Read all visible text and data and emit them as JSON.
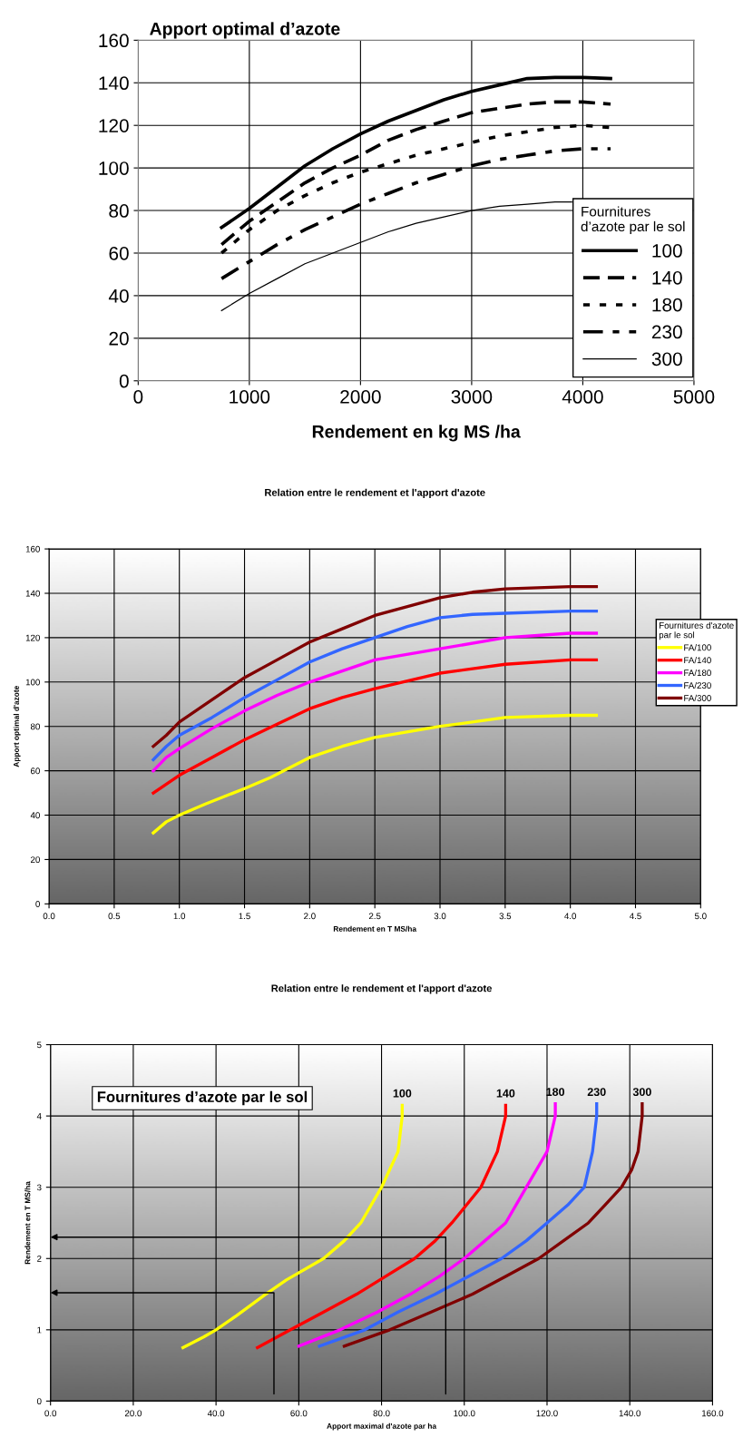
{
  "chart_data": [
    {
      "type": "line",
      "title": "Apport optimal d’azote",
      "xlabel": "Rendement en kg MS /ha",
      "legend_title": "Fournitures\nd’azote par le sol",
      "legend": "bottom right",
      "grid": true,
      "xlim": [
        0,
        5000
      ],
      "xticks": [
        0,
        1000,
        2000,
        3000,
        4000,
        5000
      ],
      "ylim": [
        0,
        160
      ],
      "yticks": [
        0,
        20,
        40,
        60,
        80,
        100,
        120,
        140,
        160
      ],
      "series": [
        {
          "name": "100",
          "color": "#000000",
          "line_style": "solid",
          "x": [
            750,
            1000,
            1250,
            1500,
            1750,
            2000,
            2250,
            2500,
            2750,
            3000,
            3250,
            3500,
            3750,
            4000,
            4250
          ],
          "values": [
            72,
            81,
            91,
            101,
            109,
            116,
            122,
            127,
            132,
            136,
            139,
            142,
            142.5,
            142.5,
            142
          ]
        },
        {
          "name": "140",
          "color": "#000000",
          "line_style": "dashed",
          "x": [
            750,
            1000,
            1250,
            1500,
            1750,
            2000,
            2250,
            2500,
            2750,
            3000,
            3250,
            3500,
            3750,
            4000,
            4250
          ],
          "values": [
            64,
            75,
            84,
            93,
            100,
            106,
            113,
            118,
            122,
            126,
            128,
            130,
            131,
            131,
            130
          ]
        },
        {
          "name": "180",
          "color": "#000000",
          "line_style": "dotted",
          "x": [
            750,
            1000,
            1250,
            1500,
            1750,
            2000,
            2250,
            2500,
            2750,
            3000,
            3250,
            3500,
            3750,
            4000,
            4250
          ],
          "values": [
            60,
            71,
            80,
            87,
            93,
            98,
            102,
            106,
            109,
            112,
            115,
            117,
            119,
            120,
            119
          ]
        },
        {
          "name": "230",
          "color": "#000000",
          "line_style": "dashdot",
          "x": [
            750,
            1000,
            1250,
            1500,
            1750,
            2000,
            2250,
            2500,
            2750,
            3000,
            3250,
            3500,
            3750,
            4000,
            4250
          ],
          "values": [
            48,
            56,
            64,
            71,
            77,
            83,
            88,
            93,
            97,
            101,
            104,
            106,
            108,
            109,
            109
          ]
        },
        {
          "name": "300",
          "color": "#000000",
          "line_style": "solid",
          "x": [
            750,
            1000,
            1250,
            1500,
            1750,
            2000,
            2250,
            2500,
            2750,
            3000,
            3250,
            3500,
            3750,
            3900
          ],
          "values": [
            33,
            41,
            48,
            55,
            60,
            65,
            70,
            74,
            77,
            80,
            82,
            83,
            84,
            84
          ]
        }
      ]
    },
    {
      "type": "line",
      "title": "Relation entre le rendement et l'apport d'azote",
      "xlabel": "Rendement en T MS/ha",
      "ylabel": "Apport optimal d'azote",
      "legend_title": "Fournitures d'azote\npar le sol",
      "legend": "right",
      "grid": true,
      "xlim": [
        0,
        5
      ],
      "xticks": [
        {
          "value": 0,
          "label": "0.0"
        },
        {
          "value": 0.5,
          "label": "0.5"
        },
        {
          "value": 1,
          "label": "1.0"
        },
        {
          "value": 1.5,
          "label": "1.5"
        },
        {
          "value": 2,
          "label": "2.0"
        },
        {
          "value": 2.5,
          "label": "2.5"
        },
        {
          "value": 3,
          "label": "3.0"
        },
        {
          "value": 3.5,
          "label": "3.5"
        },
        {
          "value": 4,
          "label": "4.0"
        },
        {
          "value": 4.5,
          "label": "4.5"
        },
        {
          "value": 5,
          "label": "5.0"
        }
      ],
      "ylim": [
        0,
        160
      ],
      "yticks": [
        0,
        20,
        40,
        60,
        80,
        100,
        120,
        140,
        160
      ],
      "series": [
        {
          "name": "FA/100",
          "color": "#ffff00",
          "x": [
            0.8,
            0.9,
            1.0,
            1.2,
            1.5,
            1.7,
            2.0,
            2.25,
            2.5,
            3.0,
            3.5,
            4.0,
            4.2
          ],
          "values": [
            32,
            37,
            40,
            45,
            52,
            57,
            66,
            71,
            75,
            80,
            84,
            85,
            85
          ]
        },
        {
          "name": "FA/140",
          "color": "#ff0000",
          "x": [
            0.8,
            1.0,
            1.25,
            1.5,
            1.75,
            2.0,
            2.25,
            2.5,
            3.0,
            3.5,
            4.0,
            4.2
          ],
          "values": [
            50,
            58,
            66,
            74,
            81,
            88,
            93,
            97,
            104,
            108,
            110,
            110
          ]
        },
        {
          "name": "FA/180",
          "color": "#ff00ff",
          "x": [
            0.8,
            0.9,
            1.0,
            1.25,
            1.5,
            1.75,
            2.0,
            2.25,
            2.5,
            3.0,
            3.5,
            4.0,
            4.2
          ],
          "values": [
            60,
            66,
            70,
            79,
            87,
            94,
            100,
            105,
            110,
            115,
            120,
            122,
            122
          ]
        },
        {
          "name": "FA/230",
          "color": "#3366ff",
          "x": [
            0.8,
            0.9,
            1.0,
            1.25,
            1.5,
            1.75,
            2.0,
            2.25,
            2.5,
            2.75,
            3.0,
            3.25,
            3.5,
            4.0,
            4.2
          ],
          "values": [
            65,
            71,
            76,
            84,
            93,
            101,
            109,
            115,
            120,
            125,
            129,
            130.5,
            131,
            132,
            132
          ]
        },
        {
          "name": "FA/300",
          "color": "#800000",
          "x": [
            0.8,
            0.9,
            1.0,
            1.25,
            1.5,
            1.75,
            2.0,
            2.25,
            2.5,
            2.75,
            3.0,
            3.25,
            3.5,
            3.75,
            4.0,
            4.2
          ],
          "values": [
            71,
            76,
            82,
            92,
            102,
            110,
            118,
            124,
            130,
            134,
            138,
            140.5,
            142,
            142.5,
            143,
            143
          ]
        }
      ]
    },
    {
      "type": "line",
      "title": "Relation entre le rendement et l'apport d'azote",
      "xlabel": "Apport maximal d'azote par ha",
      "ylabel": "Rendement en T MS/ha",
      "grid": true,
      "annotations": [
        "Fournitures d’azote par le sol"
      ],
      "xlim": [
        0,
        160
      ],
      "xticks": [
        {
          "value": 0,
          "label": "0.0"
        },
        {
          "value": 20,
          "label": "20.0"
        },
        {
          "value": 40,
          "label": "40.0"
        },
        {
          "value": 60,
          "label": "60.0"
        },
        {
          "value": 80,
          "label": "80.0"
        },
        {
          "value": 100,
          "label": "100.0"
        },
        {
          "value": 120,
          "label": "120.0"
        },
        {
          "value": 140,
          "label": "140.0"
        },
        {
          "value": 160,
          "label": "160.0"
        }
      ],
      "ylim": [
        0,
        5
      ],
      "yticks": [
        0,
        1,
        2,
        3,
        4,
        5
      ],
      "series": [
        {
          "name": "100",
          "color": "#ffff00",
          "x": [
            32,
            37,
            40,
            45,
            52,
            57,
            66,
            71,
            75,
            80,
            84,
            85,
            85
          ],
          "values": [
            0.75,
            0.9,
            1.0,
            1.2,
            1.5,
            1.7,
            2.0,
            2.25,
            2.5,
            3.0,
            3.5,
            4.0,
            4.15
          ]
        },
        {
          "name": "140",
          "color": "#ff0000",
          "x": [
            50,
            58,
            66,
            74,
            81,
            88,
            93,
            97,
            104,
            108,
            110,
            110
          ],
          "values": [
            0.75,
            1.0,
            1.25,
            1.5,
            1.75,
            2.0,
            2.25,
            2.5,
            3.0,
            3.5,
            4.0,
            4.15
          ]
        },
        {
          "name": "180",
          "color": "#ff00ff",
          "x": [
            60,
            70,
            79,
            87,
            94,
            100,
            105,
            110,
            115,
            120,
            122,
            122
          ],
          "values": [
            0.77,
            1.0,
            1.25,
            1.5,
            1.75,
            2.0,
            2.25,
            2.5,
            3.0,
            3.5,
            4.0,
            4.17
          ]
        },
        {
          "name": "230",
          "color": "#3366ff",
          "x": [
            65,
            76,
            84,
            93,
            101,
            109,
            115,
            120,
            125,
            129,
            131,
            132,
            132
          ],
          "values": [
            0.77,
            1.0,
            1.25,
            1.5,
            1.75,
            2.0,
            2.25,
            2.5,
            2.75,
            3.0,
            3.5,
            4.0,
            4.17
          ]
        },
        {
          "name": "300",
          "color": "#800000",
          "x": [
            71,
            82,
            92,
            102,
            110,
            118,
            124,
            130,
            134,
            138,
            140.5,
            142,
            143,
            143
          ],
          "values": [
            0.77,
            1.0,
            1.25,
            1.5,
            1.75,
            2.0,
            2.25,
            2.5,
            2.75,
            3.0,
            3.25,
            3.5,
            4.0,
            4.17
          ]
        }
      ]
    }
  ]
}
